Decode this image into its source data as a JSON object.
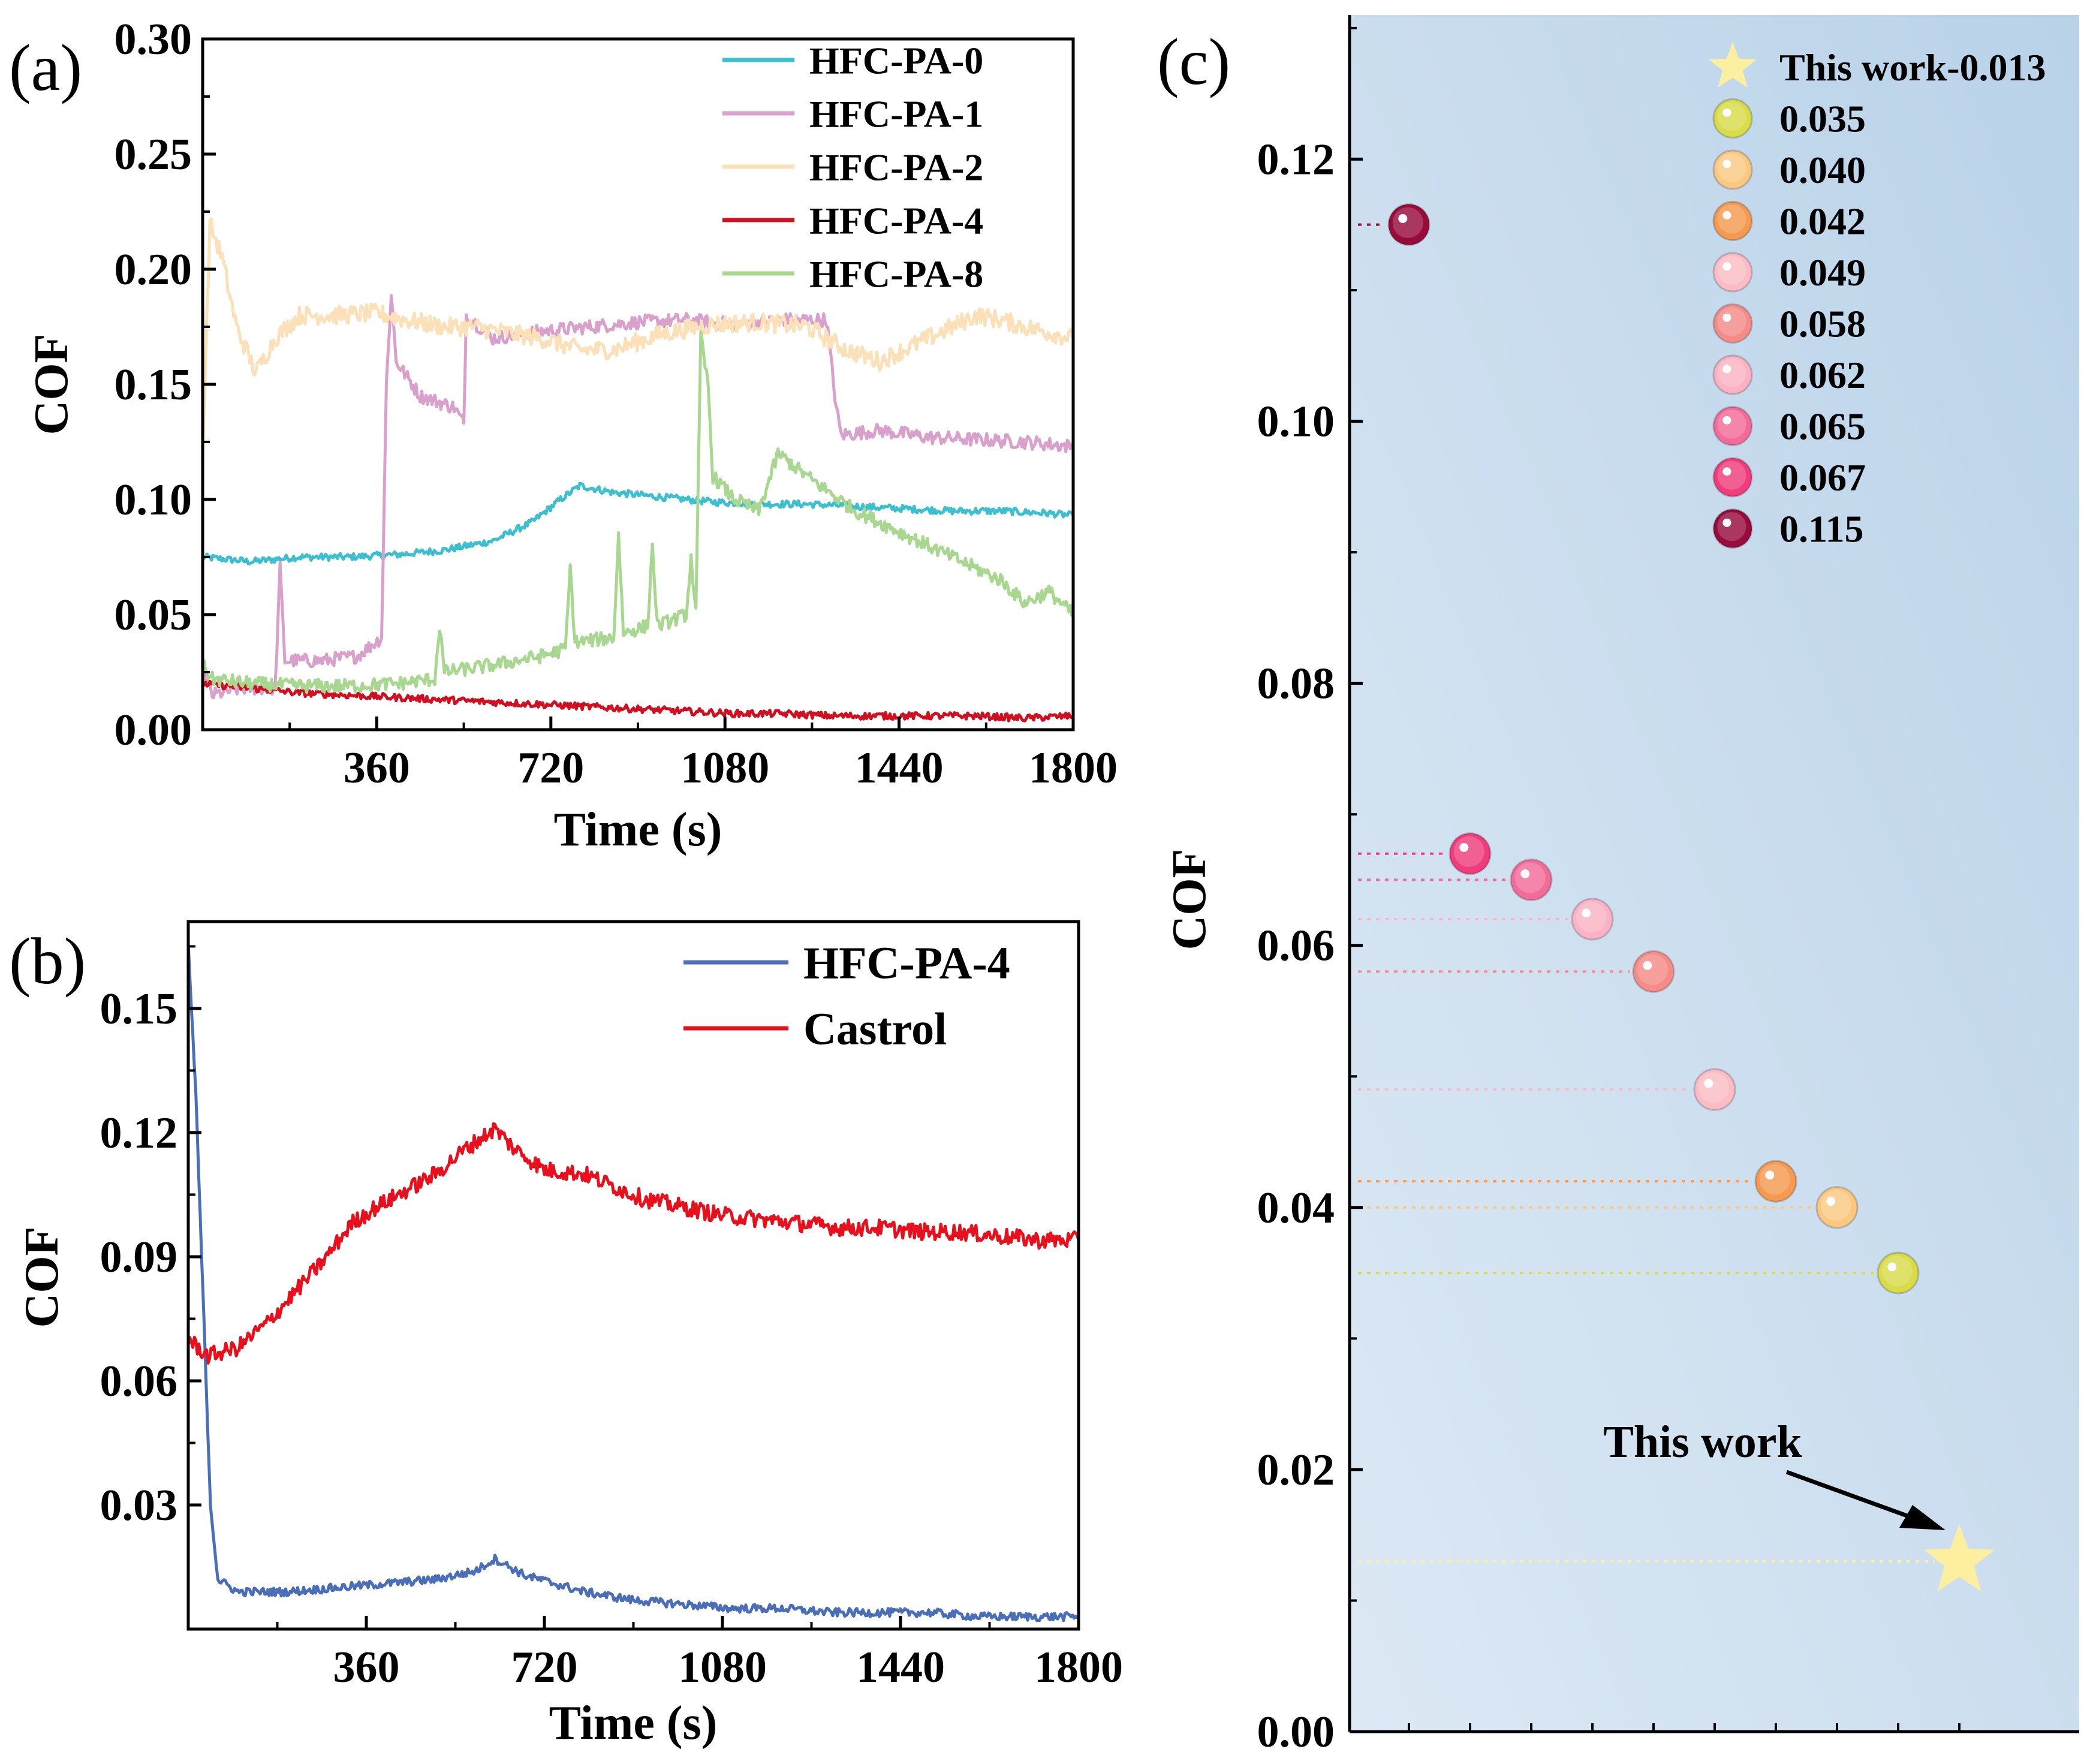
{
  "chart_data": [
    {
      "panel": "(a)",
      "type": "line",
      "xlabel": "Time (s)",
      "ylabel": "COF",
      "xlim": [
        0,
        1800
      ],
      "ylim": [
        0,
        0.3
      ],
      "xticks": [
        "360",
        "720",
        "1080",
        "1440",
        "1800"
      ],
      "yticks": [
        "0.00",
        "0.05",
        "0.10",
        "0.15",
        "0.20",
        "0.25",
        "0.30"
      ],
      "legend_position": "top-right",
      "series": [
        {
          "name": "HFC-PA-0",
          "color": "#3cc0d0",
          "points": [
            [
              0,
              0.075
            ],
            [
              100,
              0.073
            ],
            [
              200,
              0.075
            ],
            [
              300,
              0.075
            ],
            [
              400,
              0.076
            ],
            [
              500,
              0.078
            ],
            [
              600,
              0.082
            ],
            [
              680,
              0.09
            ],
            [
              740,
              0.1
            ],
            [
              780,
              0.106
            ],
            [
              850,
              0.103
            ],
            [
              950,
              0.101
            ],
            [
              1050,
              0.099
            ],
            [
              1150,
              0.098
            ],
            [
              1250,
              0.098
            ],
            [
              1350,
              0.097
            ],
            [
              1450,
              0.096
            ],
            [
              1550,
              0.095
            ],
            [
              1650,
              0.095
            ],
            [
              1750,
              0.094
            ],
            [
              1800,
              0.093
            ]
          ]
        },
        {
          "name": "HFC-PA-1",
          "color": "#d9a0cc",
          "points": [
            [
              0,
              0.025
            ],
            [
              20,
              0.015
            ],
            [
              80,
              0.018
            ],
            [
              150,
              0.018
            ],
            [
              160,
              0.07
            ],
            [
              170,
              0.03
            ],
            [
              250,
              0.03
            ],
            [
              320,
              0.032
            ],
            [
              370,
              0.04
            ],
            [
              380,
              0.15
            ],
            [
              390,
              0.19
            ],
            [
              400,
              0.16
            ],
            [
              450,
              0.145
            ],
            [
              520,
              0.14
            ],
            [
              540,
              0.133
            ],
            [
              545,
              0.18
            ],
            [
              600,
              0.17
            ],
            [
              700,
              0.173
            ],
            [
              800,
              0.175
            ],
            [
              900,
              0.177
            ],
            [
              1000,
              0.178
            ],
            [
              1100,
              0.176
            ],
            [
              1200,
              0.178
            ],
            [
              1290,
              0.178
            ],
            [
              1310,
              0.14
            ],
            [
              1320,
              0.128
            ],
            [
              1400,
              0.13
            ],
            [
              1500,
              0.127
            ],
            [
              1600,
              0.126
            ],
            [
              1700,
              0.125
            ],
            [
              1800,
              0.123
            ]
          ]
        },
        {
          "name": "HFC-PA-2",
          "color": "#fce0b8",
          "points": [
            [
              0,
              0.12
            ],
            [
              15,
              0.22
            ],
            [
              40,
              0.205
            ],
            [
              70,
              0.175
            ],
            [
              110,
              0.155
            ],
            [
              150,
              0.17
            ],
            [
              200,
              0.18
            ],
            [
              280,
              0.18
            ],
            [
              360,
              0.181
            ],
            [
              420,
              0.178
            ],
            [
              500,
              0.175
            ],
            [
              560,
              0.175
            ],
            [
              640,
              0.172
            ],
            [
              700,
              0.17
            ],
            [
              780,
              0.165
            ],
            [
              850,
              0.165
            ],
            [
              950,
              0.172
            ],
            [
              1050,
              0.176
            ],
            [
              1150,
              0.177
            ],
            [
              1250,
              0.175
            ],
            [
              1330,
              0.165
            ],
            [
              1400,
              0.16
            ],
            [
              1500,
              0.17
            ],
            [
              1600,
              0.18
            ],
            [
              1650,
              0.178
            ],
            [
              1700,
              0.175
            ],
            [
              1800,
              0.17
            ]
          ]
        },
        {
          "name": "HFC-PA-4",
          "color": "#d01020",
          "points": [
            [
              0,
              0.02
            ],
            [
              100,
              0.018
            ],
            [
              200,
              0.016
            ],
            [
              300,
              0.015
            ],
            [
              400,
              0.014
            ],
            [
              500,
              0.013
            ],
            [
              600,
              0.012
            ],
            [
              700,
              0.011
            ],
            [
              800,
              0.01
            ],
            [
              900,
              0.009
            ],
            [
              1000,
              0.008
            ],
            [
              1100,
              0.007
            ],
            [
              1200,
              0.007
            ],
            [
              1300,
              0.006
            ],
            [
              1400,
              0.006
            ],
            [
              1500,
              0.006
            ],
            [
              1600,
              0.006
            ],
            [
              1700,
              0.005
            ],
            [
              1800,
              0.006
            ]
          ]
        },
        {
          "name": "HFC-PA-8",
          "color": "#a8d890",
          "points": [
            [
              0,
              0.028
            ],
            [
              20,
              0.022
            ],
            [
              100,
              0.02
            ],
            [
              200,
              0.019
            ],
            [
              300,
              0.019
            ],
            [
              400,
              0.02
            ],
            [
              480,
              0.022
            ],
            [
              490,
              0.045
            ],
            [
              500,
              0.025
            ],
            [
              600,
              0.028
            ],
            [
              700,
              0.032
            ],
            [
              750,
              0.035
            ],
            [
              760,
              0.07
            ],
            [
              770,
              0.038
            ],
            [
              850,
              0.04
            ],
            [
              860,
              0.085
            ],
            [
              870,
              0.042
            ],
            [
              920,
              0.045
            ],
            [
              930,
              0.08
            ],
            [
              940,
              0.045
            ],
            [
              1000,
              0.05
            ],
            [
              1010,
              0.075
            ],
            [
              1020,
              0.05
            ],
            [
              1030,
              0.17
            ],
            [
              1045,
              0.15
            ],
            [
              1055,
              0.11
            ],
            [
              1100,
              0.1
            ],
            [
              1150,
              0.095
            ],
            [
              1190,
              0.12
            ],
            [
              1250,
              0.11
            ],
            [
              1350,
              0.095
            ],
            [
              1450,
              0.085
            ],
            [
              1550,
              0.075
            ],
            [
              1650,
              0.065
            ],
            [
              1700,
              0.055
            ],
            [
              1750,
              0.06
            ],
            [
              1800,
              0.05
            ]
          ]
        }
      ]
    },
    {
      "panel": "(b)",
      "type": "line",
      "xlabel": "Time (s)",
      "ylabel": "COF",
      "xlim": [
        0,
        1800
      ],
      "ylim": [
        0,
        0.171
      ],
      "xticks": [
        "360",
        "720",
        "1080",
        "1440",
        "1800"
      ],
      "yticks": [
        "0.03",
        "0.06",
        "0.09",
        "0.12",
        "0.15"
      ],
      "legend_position": "top-right",
      "series": [
        {
          "name": "HFC-PA-4",
          "color": "#4a6fb8",
          "points": [
            [
              0,
              0.165
            ],
            [
              15,
              0.13
            ],
            [
              30,
              0.08
            ],
            [
              45,
              0.03
            ],
            [
              60,
              0.012
            ],
            [
              100,
              0.009
            ],
            [
              200,
              0.009
            ],
            [
              300,
              0.01
            ],
            [
              400,
              0.011
            ],
            [
              500,
              0.012
            ],
            [
              580,
              0.014
            ],
            [
              620,
              0.017
            ],
            [
              680,
              0.013
            ],
            [
              800,
              0.009
            ],
            [
              900,
              0.007
            ],
            [
              1000,
              0.006
            ],
            [
              1100,
              0.005
            ],
            [
              1200,
              0.005
            ],
            [
              1300,
              0.004
            ],
            [
              1400,
              0.004
            ],
            [
              1500,
              0.004
            ],
            [
              1600,
              0.003
            ],
            [
              1700,
              0.003
            ],
            [
              1800,
              0.003
            ]
          ]
        },
        {
          "name": "Castrol",
          "color": "#e8101c",
          "points": [
            [
              0,
              0.07
            ],
            [
              40,
              0.066
            ],
            [
              100,
              0.068
            ],
            [
              160,
              0.074
            ],
            [
              220,
              0.082
            ],
            [
              280,
              0.09
            ],
            [
              330,
              0.098
            ],
            [
              380,
              0.102
            ],
            [
              440,
              0.106
            ],
            [
              500,
              0.11
            ],
            [
              560,
              0.116
            ],
            [
              620,
              0.121
            ],
            [
              660,
              0.116
            ],
            [
              720,
              0.111
            ],
            [
              800,
              0.11
            ],
            [
              860,
              0.107
            ],
            [
              920,
              0.104
            ],
            [
              1000,
              0.102
            ],
            [
              1080,
              0.1
            ],
            [
              1160,
              0.099
            ],
            [
              1240,
              0.098
            ],
            [
              1320,
              0.097
            ],
            [
              1400,
              0.097
            ],
            [
              1480,
              0.096
            ],
            [
              1560,
              0.096
            ],
            [
              1640,
              0.095
            ],
            [
              1720,
              0.094
            ],
            [
              1800,
              0.094
            ]
          ]
        }
      ]
    },
    {
      "panel": "(c)",
      "type": "scatter",
      "ylabel": "COF",
      "ylim": [
        0,
        0.131
      ],
      "yticks": [
        "0.00",
        "0.02",
        "0.04",
        "0.06",
        "0.08",
        "0.10",
        "0.12"
      ],
      "background": [
        "#dde9f5",
        "#b9d2e8"
      ],
      "legend_position": "top-right",
      "annotation": "This work",
      "points": [
        {
          "label": "This work-0.013",
          "value": 0.013,
          "marker": "star",
          "color": "#fcf0a0",
          "xindex": 9
        },
        {
          "label": "0.035",
          "value": 0.035,
          "marker": "sphere",
          "color": "#d8dc48",
          "xindex": 8
        },
        {
          "label": "0.040",
          "value": 0.04,
          "marker": "sphere",
          "color": "#fbc882",
          "xindex": 7
        },
        {
          "label": "0.042",
          "value": 0.042,
          "marker": "sphere",
          "color": "#f59a50",
          "xindex": 6
        },
        {
          "label": "0.049",
          "value": 0.049,
          "marker": "sphere",
          "color": "#fbbcc4",
          "xindex": 5
        },
        {
          "label": "0.058",
          "value": 0.058,
          "marker": "sphere",
          "color": "#f58c88",
          "xindex": 4
        },
        {
          "label": "0.062",
          "value": 0.062,
          "marker": "sphere",
          "color": "#fab2c4",
          "xindex": 3
        },
        {
          "label": "0.065",
          "value": 0.065,
          "marker": "sphere",
          "color": "#f16c98",
          "xindex": 2
        },
        {
          "label": "0.067",
          "value": 0.067,
          "marker": "sphere",
          "color": "#ef3c7c",
          "xindex": 1
        },
        {
          "label": "0.115",
          "value": 0.115,
          "marker": "sphere",
          "color": "#980c3c",
          "xindex": 0
        }
      ]
    }
  ]
}
